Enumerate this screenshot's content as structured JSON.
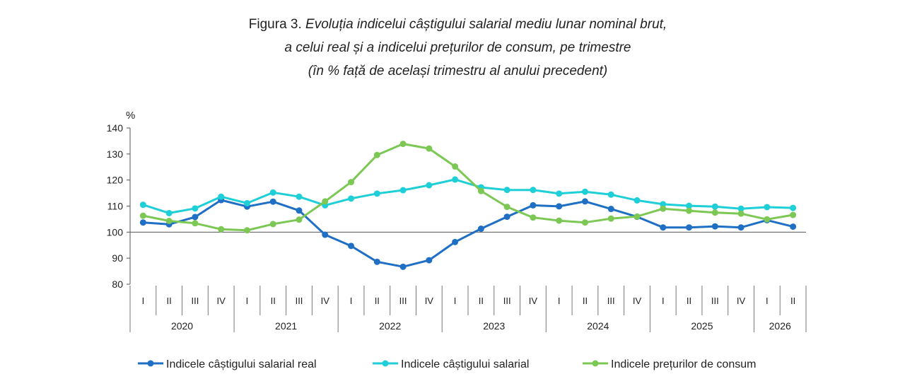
{
  "title": {
    "prefix": "Figura 3.",
    "line1": "Evoluția indicelui câștigului salarial mediu lunar nominal brut,",
    "line2": "a celui real și a indicelui prețurilor de consum, pe trimestre",
    "line3": "(în % față de același trimestru al anului precedent)"
  },
  "chart_data": {
    "type": "line",
    "ylabel": "%",
    "ylim": [
      80,
      140
    ],
    "yticks": [
      80,
      90,
      100,
      110,
      120,
      130,
      140
    ],
    "quarters": [
      "I",
      "II",
      "III",
      "IV",
      "I",
      "II",
      "III",
      "IV",
      "I",
      "II",
      "III",
      "IV",
      "I",
      "II",
      "III",
      "IV",
      "I",
      "II",
      "III",
      "IV",
      "I",
      "II",
      "III",
      "IV",
      "I",
      "II"
    ],
    "years": [
      {
        "label": "2020",
        "count": 4
      },
      {
        "label": "2021",
        "count": 4
      },
      {
        "label": "2022",
        "count": 4
      },
      {
        "label": "2023",
        "count": 4
      },
      {
        "label": "2024",
        "count": 4
      },
      {
        "label": "2025",
        "count": 4
      },
      {
        "label": "2026",
        "count": 2
      }
    ],
    "legend_position": "bottom",
    "series": [
      {
        "name": "Indicele câștigului salarial real",
        "color": "#1f6fc5",
        "values": [
          103.7,
          103.0,
          105.8,
          112.3,
          109.8,
          111.7,
          108.3,
          99.0,
          94.7,
          88.6,
          86.7,
          89.2,
          96.2,
          101.3,
          105.9,
          110.3,
          109.9,
          111.8,
          108.9,
          105.9,
          101.8,
          101.8,
          102.2,
          101.8,
          104.6,
          102.1
        ]
      },
      {
        "name": "Indicele câștigului salarial",
        "color": "#1fcfd8",
        "values": [
          110.5,
          107.3,
          109.1,
          113.6,
          111.1,
          115.2,
          113.6,
          110.3,
          112.9,
          114.8,
          116.1,
          118.0,
          120.2,
          117.2,
          116.2,
          116.2,
          114.8,
          115.5,
          114.4,
          112.2,
          110.7,
          110.1,
          109.8,
          109.0,
          109.6,
          109.3
        ]
      },
      {
        "name": "Indicele prețurilor de consum",
        "color": "#7dc855",
        "values": [
          106.3,
          104.3,
          103.4,
          101.1,
          100.7,
          103.1,
          104.8,
          111.8,
          119.2,
          129.6,
          133.9,
          132.1,
          125.2,
          115.8,
          109.7,
          105.6,
          104.4,
          103.7,
          105.2,
          106.0,
          109.0,
          108.2,
          107.5,
          107.1,
          104.9,
          106.6
        ]
      }
    ]
  }
}
